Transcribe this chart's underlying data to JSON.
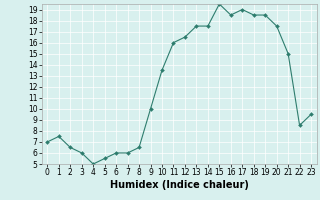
{
  "x": [
    0,
    1,
    2,
    3,
    4,
    5,
    6,
    7,
    8,
    9,
    10,
    11,
    12,
    13,
    14,
    15,
    16,
    17,
    18,
    19,
    20,
    21,
    22,
    23
  ],
  "y": [
    7,
    7.5,
    6.5,
    6,
    5,
    5.5,
    6,
    6,
    6.5,
    10,
    13.5,
    16,
    16.5,
    17.5,
    17.5,
    19.5,
    18.5,
    19,
    18.5,
    18.5,
    17.5,
    15,
    8.5,
    9.5
  ],
  "line_color": "#2e7d6e",
  "marker_color": "#2e7d6e",
  "bg_color": "#d8f0ee",
  "grid_color": "#ffffff",
  "xlabel": "Humidex (Indice chaleur)",
  "ylim_min": 5,
  "ylim_max": 19.5,
  "xlim_min": -0.5,
  "xlim_max": 23.5,
  "yticks": [
    5,
    6,
    7,
    8,
    9,
    10,
    11,
    12,
    13,
    14,
    15,
    16,
    17,
    18,
    19
  ],
  "xticks": [
    0,
    1,
    2,
    3,
    4,
    5,
    6,
    7,
    8,
    9,
    10,
    11,
    12,
    13,
    14,
    15,
    16,
    17,
    18,
    19,
    20,
    21,
    22,
    23
  ],
  "tick_label_fontsize": 5.5,
  "xlabel_fontsize": 7
}
